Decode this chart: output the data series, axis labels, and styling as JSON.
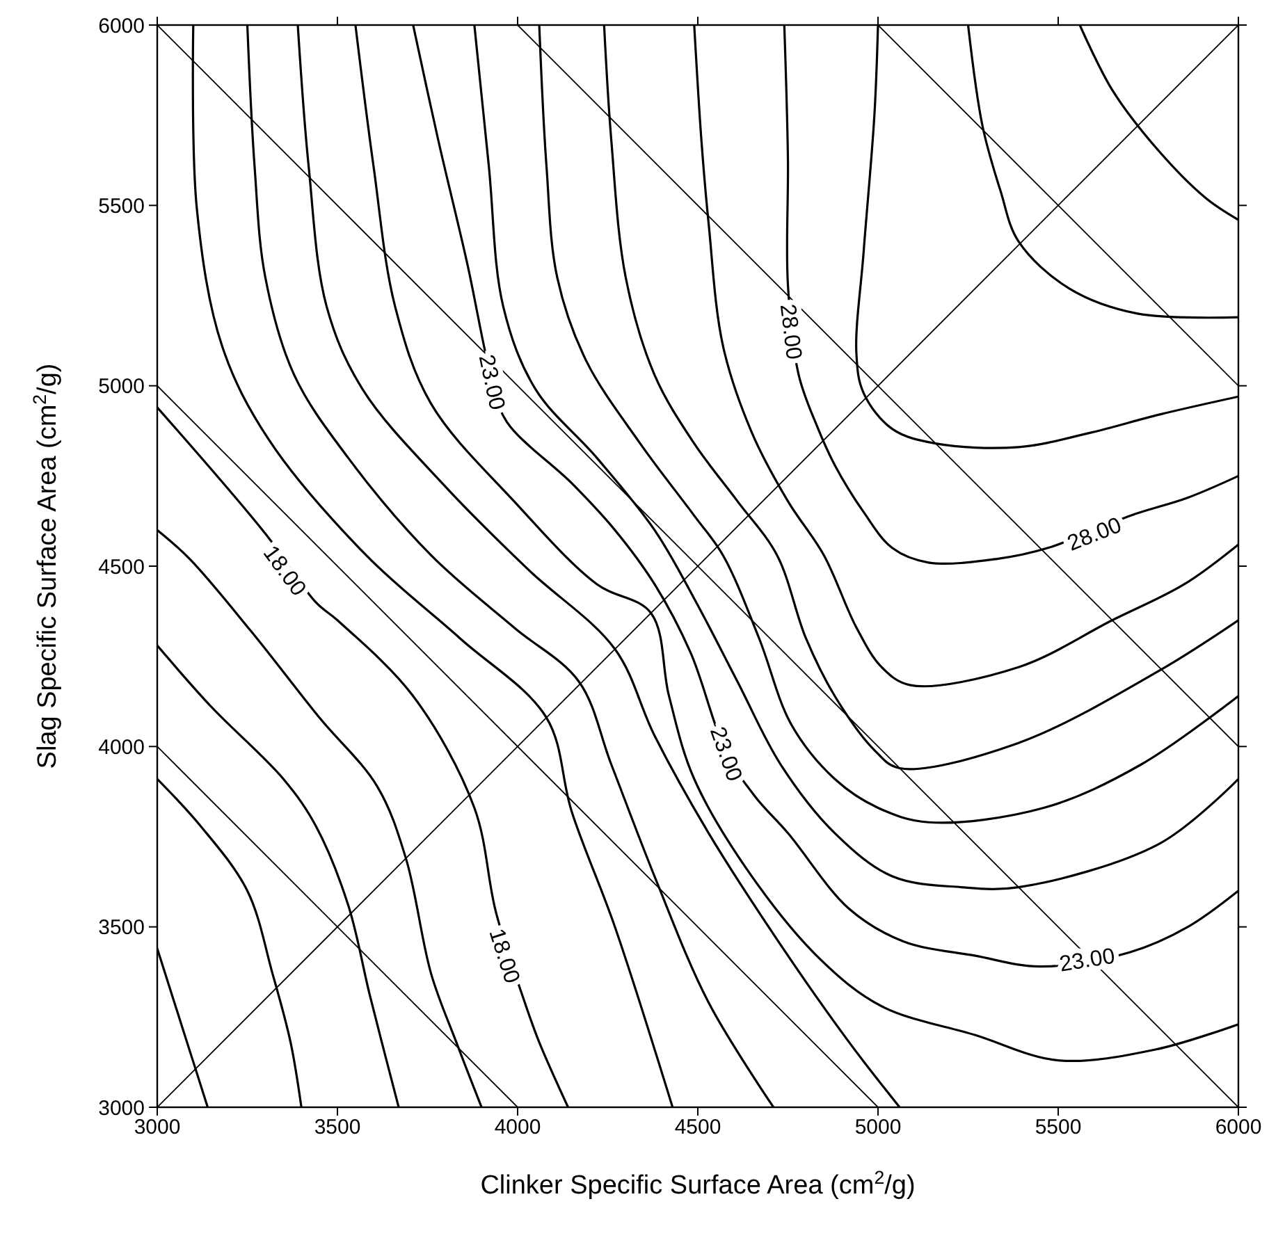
{
  "chart_data": {
    "type": "line",
    "xlabel": "Clinker Specific Surface Area (cm$^{2}$/g)",
    "ylabel": "Slag Specific Surface Area (cm$^{2}$/g)",
    "xlim": [
      3000,
      6000
    ],
    "ylim": [
      3000,
      6000
    ],
    "xticks": [
      3000,
      3500,
      4000,
      4500,
      5000,
      5500,
      6000
    ],
    "yticks": [
      3000,
      3500,
      4000,
      4500,
      5000,
      5500,
      6000
    ],
    "grid": false,
    "series": [
      {
        "color": "#000000",
        "x": [
          3000,
          3070,
          3140
        ],
        "values": [
          3440,
          3220,
          3000
        ]
      },
      {
        "color": "#000000",
        "x": [
          3000,
          3120,
          3250,
          3320,
          3370,
          3400
        ],
        "values": [
          3910,
          3780,
          3600,
          3370,
          3180,
          3000
        ]
      },
      {
        "color": "#000000",
        "x": [
          3000,
          3150,
          3350,
          3440,
          3530,
          3590,
          3670
        ],
        "values": [
          4280,
          4110,
          3910,
          3780,
          3560,
          3310,
          3000
        ]
      },
      {
        "color": "#000000",
        "x": [
          3000,
          3090,
          3260,
          3450,
          3610,
          3690,
          3760,
          3830,
          3900
        ],
        "values": [
          4600,
          4520,
          4320,
          4080,
          3890,
          3690,
          3370,
          3180,
          3000
        ]
      },
      {
        "color": "#000000",
        "x": [
          3000,
          3300,
          3440,
          3500,
          3710,
          3880,
          3940,
          4020,
          4060,
          4140
        ],
        "values": [
          4940,
          4590,
          4400,
          4350,
          4140,
          3830,
          3540,
          3290,
          3180,
          3000
        ]
      },
      {
        "color": "#000000",
        "x": [
          3100,
          3110,
          3180,
          3310,
          3580,
          3840,
          4080,
          4150,
          4270,
          4430
        ],
        "values": [
          6000,
          5490,
          5110,
          4850,
          4530,
          4300,
          4080,
          3820,
          3500,
          3000
        ]
      },
      {
        "color": "#000000",
        "x": [
          3250,
          3270,
          3300,
          3380,
          3530,
          3760,
          3990,
          4170,
          4260,
          4380,
          4530,
          4710
        ],
        "values": [
          6000,
          5610,
          5300,
          5030,
          4800,
          4530,
          4330,
          4180,
          3950,
          3640,
          3290,
          3000
        ]
      },
      {
        "color": "#000000",
        "x": [
          3390,
          3420,
          3470,
          3570,
          3800,
          4030,
          4270,
          4380,
          4530,
          4730,
          4920,
          5060
        ],
        "values": [
          6000,
          5610,
          5220,
          4990,
          4720,
          4490,
          4270,
          4030,
          3760,
          3450,
          3180,
          3000
        ]
      },
      {
        "color": "#000000",
        "x": [
          3550,
          3600,
          3660,
          3760,
          3990,
          4220,
          4370,
          4420,
          4490,
          4650,
          4840,
          5010,
          5270,
          5500,
          5770,
          6000
        ],
        "values": [
          6000,
          5610,
          5220,
          4950,
          4680,
          4450,
          4370,
          4140,
          3910,
          3640,
          3410,
          3280,
          3200,
          3130,
          3160,
          3230
        ]
      },
      {
        "color": "#000000",
        "x": [
          3710,
          3780,
          3860,
          3930,
          3970,
          4150,
          4270,
          4380,
          4480,
          4580,
          4660,
          4750,
          4920,
          5070,
          5270,
          5450,
          5700,
          5860,
          6000
        ],
        "values": [
          6000,
          5680,
          5340,
          5010,
          4900,
          4730,
          4600,
          4450,
          4260,
          3980,
          3860,
          3760,
          3550,
          3460,
          3420,
          3390,
          3430,
          3500,
          3600
        ]
      },
      {
        "color": "#000000",
        "x": [
          3880,
          3920,
          3960,
          4050,
          4220,
          4380,
          4490,
          4610,
          4730,
          4880,
          5040,
          5230,
          5390,
          5780,
          6000
        ],
        "values": [
          6000,
          5610,
          5220,
          4990,
          4800,
          4600,
          4410,
          4180,
          3950,
          3760,
          3640,
          3610,
          3610,
          3730,
          3910
        ]
      },
      {
        "color": "#000000",
        "x": [
          4060,
          4080,
          4110,
          4190,
          4340,
          4490,
          4570,
          4670,
          4760,
          4880,
          5000,
          5140,
          5460,
          5730,
          6000
        ],
        "values": [
          6000,
          5610,
          5300,
          5070,
          4840,
          4640,
          4530,
          4300,
          4060,
          3910,
          3830,
          3790,
          3830,
          3950,
          4140
        ]
      },
      {
        "color": "#000000",
        "x": [
          4240,
          4260,
          4300,
          4380,
          4490,
          4610,
          4720,
          4800,
          4880,
          4990,
          5060,
          5390,
          5780,
          6000
        ],
        "values": [
          6000,
          5680,
          5300,
          5030,
          4840,
          4680,
          4530,
          4300,
          4140,
          3990,
          3940,
          4010,
          4210,
          4350
        ]
      },
      {
        "color": "#000000",
        "x": [
          4490,
          4510,
          4530,
          4570,
          4650,
          4750,
          4850,
          4940,
          5010,
          5090,
          5390,
          5650,
          5850,
          6000
        ],
        "values": [
          6000,
          5680,
          5450,
          5110,
          4870,
          4680,
          4530,
          4330,
          4220,
          4170,
          4220,
          4350,
          4450,
          4560
        ]
      },
      {
        "color": "#000000",
        "x": [
          4740,
          4750,
          4750,
          4780,
          4830,
          4880,
          4960,
          5040,
          5140,
          5330,
          5470,
          5700,
          5860,
          6000
        ],
        "values": [
          6000,
          5630,
          5280,
          5030,
          4890,
          4780,
          4650,
          4550,
          4510,
          4520,
          4550,
          4640,
          4690,
          4750
        ]
      },
      {
        "color": "#000000",
        "x": [
          5000,
          4990,
          4960,
          4940,
          4960,
          5040,
          5160,
          5390,
          5590,
          5780,
          6000
        ],
        "values": [
          6000,
          5750,
          5370,
          5090,
          4980,
          4880,
          4840,
          4830,
          4870,
          4920,
          4970
        ]
      },
      {
        "color": "#000000",
        "x": [
          5250,
          5290,
          5340,
          5390,
          5530,
          5720,
          6000
        ],
        "values": [
          6000,
          5720,
          5540,
          5400,
          5270,
          5200,
          5190
        ]
      },
      {
        "color": "#000000",
        "x": [
          5560,
          5650,
          5780,
          5910,
          6000
        ],
        "values": [
          6000,
          5820,
          5650,
          5520,
          5460
        ]
      },
      {
        "color": "#000000",
        "x": [
          3000,
          6000
        ],
        "values": [
          6000,
          3000
        ]
      },
      {
        "color": "#000000",
        "x": [
          3000,
          5000
        ],
        "values": [
          5000,
          3000
        ]
      },
      {
        "color": "#000000",
        "x": [
          3000,
          4000
        ],
        "values": [
          4000,
          3000
        ]
      },
      {
        "color": "#000000",
        "x": [
          4000,
          6000
        ],
        "values": [
          6000,
          4000
        ]
      },
      {
        "color": "#000000",
        "x": [
          5000,
          6000
        ],
        "values": [
          6000,
          5000
        ]
      },
      {
        "color": "#000000",
        "x": [
          3000,
          6000
        ],
        "values": [
          3000,
          6000
        ]
      }
    ],
    "annotations": [
      {
        "text": "18.00",
        "x": 3355,
        "y": 4488
      },
      {
        "text": "18.00",
        "x": 3965,
        "y": 3420
      },
      {
        "text": "23.00",
        "x": 3930,
        "y": 5010
      },
      {
        "text": "23.00",
        "x": 4580,
        "y": 3980
      },
      {
        "text": "23.00",
        "x": 5580,
        "y": 3410
      },
      {
        "text": "28.00",
        "x": 4760,
        "y": 5150
      },
      {
        "text": "28.00",
        "x": 5600,
        "y": 4590
      }
    ]
  }
}
